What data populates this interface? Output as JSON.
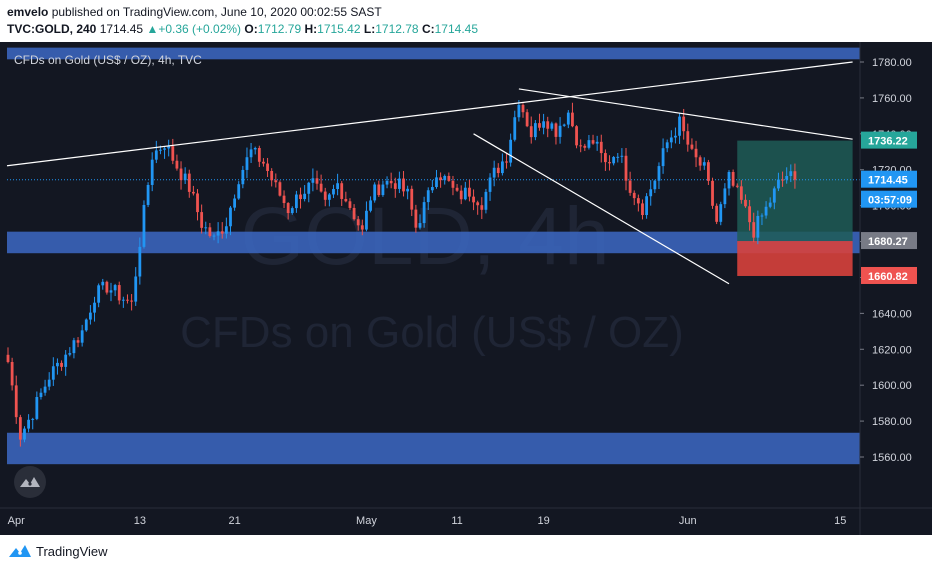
{
  "header": {
    "publisher": "emvelo",
    "published_text": "published on TradingView.com, June 10, 2020 00:02:55 SAST",
    "symbol": "TVC:GOLD, 240",
    "last": "1714.45",
    "change": "+0.36 (+0.02%)",
    "o_label": "O:",
    "o_value": "1712.79",
    "h_label": "H:",
    "h_value": "1715.42",
    "l_label": "L:",
    "l_value": "1712.78",
    "c_label": "C:",
    "c_value": "1714.45"
  },
  "chart_title": "CFDs on Gold (US$ / OZ), 4h, TVC",
  "watermark": {
    "line1": "GOLD, 4h",
    "line2": "CFDs on Gold (US$ / OZ)"
  },
  "footer": {
    "brand": "TradingView"
  },
  "colors": {
    "background": "#131722",
    "up": "#2196f3",
    "down": "#ef5350",
    "zone": "#3a63b8",
    "target": "#1e5c56",
    "stop": "#d8413c",
    "price_line": "#2196f3",
    "price_tag": "#2196f3",
    "countdown_tag": "#2196f3",
    "entry_tag": "#787b86",
    "target_tag": "#26a69a",
    "stop_tag": "#ef5350",
    "trendline": "#ffffff"
  },
  "chart_data": {
    "type": "candlestick",
    "y_axis": {
      "ylim": [
        1547,
        1790
      ],
      "ticks": [
        "1780.00",
        "1760.00",
        "1740.00",
        "1720.00",
        "1700.00",
        "1680.00",
        "1660.00",
        "1640.00",
        "1620.00",
        "1600.00",
        "1580.00",
        "1560.00"
      ]
    },
    "x_axis": {
      "ticks": [
        "Apr",
        "13",
        "21",
        "May",
        "11",
        "19",
        "Jun",
        "15"
      ],
      "tick_bars": [
        2,
        32,
        55,
        87,
        109,
        130,
        165,
        202
      ]
    },
    "close_series_anchors": [
      [
        0,
        1613
      ],
      [
        3,
        1572
      ],
      [
        6,
        1585
      ],
      [
        10,
        1605
      ],
      [
        14,
        1617
      ],
      [
        18,
        1630
      ],
      [
        21,
        1650
      ],
      [
        24,
        1655
      ],
      [
        27,
        1650
      ],
      [
        30,
        1645
      ],
      [
        32,
        1680
      ],
      [
        35,
        1728
      ],
      [
        38,
        1735
      ],
      [
        41,
        1722
      ],
      [
        44,
        1710
      ],
      [
        47,
        1690
      ],
      [
        50,
        1681
      ],
      [
        53,
        1691
      ],
      [
        56,
        1716
      ],
      [
        59,
        1730
      ],
      [
        62,
        1724
      ],
      [
        65,
        1710
      ],
      [
        68,
        1698
      ],
      [
        71,
        1707
      ],
      [
        74,
        1712
      ],
      [
        77,
        1700
      ],
      [
        80,
        1712
      ],
      [
        83,
        1700
      ],
      [
        86,
        1685
      ],
      [
        88,
        1705
      ],
      [
        91,
        1713
      ],
      [
        94,
        1713
      ],
      [
        97,
        1706
      ],
      [
        99,
        1688
      ],
      [
        102,
        1705
      ],
      [
        104,
        1720
      ],
      [
        107,
        1712
      ],
      [
        109,
        1705
      ],
      [
        112,
        1708
      ],
      [
        115,
        1702
      ],
      [
        118,
        1718
      ],
      [
        121,
        1728
      ],
      [
        124,
        1760
      ],
      [
        127,
        1740
      ],
      [
        130,
        1750
      ],
      [
        133,
        1742
      ],
      [
        136,
        1752
      ],
      [
        139,
        1731
      ],
      [
        142,
        1736
      ],
      [
        145,
        1723
      ],
      [
        148,
        1731
      ],
      [
        151,
        1711
      ],
      [
        154,
        1699
      ],
      [
        157,
        1715
      ],
      [
        160,
        1735
      ],
      [
        163,
        1746
      ],
      [
        166,
        1728
      ],
      [
        169,
        1720
      ],
      [
        172,
        1691
      ],
      [
        175,
        1715
      ],
      [
        178,
        1702
      ],
      [
        181,
        1686
      ],
      [
        184,
        1698
      ],
      [
        187,
        1712
      ],
      [
        189,
        1717
      ],
      [
        191,
        1714.45
      ]
    ],
    "bars_total": 192,
    "last_price": 1714.45,
    "price_tags": {
      "last": "1714.45",
      "countdown": "03:57:09",
      "target": "1736.22",
      "entry": "1680.27",
      "stop": "1660.82",
      "hidden_tick": "1740.00"
    },
    "zones": [
      {
        "from": 1781.5,
        "to": 1788
      },
      {
        "from": 1673.5,
        "to": 1685.5
      },
      {
        "from": 1556,
        "to": 1573.5
      }
    ],
    "position": {
      "entry": 1680.27,
      "target": 1736.22,
      "stop": 1660.82,
      "start_bar": 177,
      "end_bar": 205
    },
    "trendlines": [
      {
        "from": [
          -1,
          1722
        ],
        "to": [
          205,
          1780
        ]
      },
      {
        "from": [
          124,
          1765
        ],
        "to": [
          205,
          1737
        ]
      },
      {
        "from": [
          113,
          1740
        ],
        "to": [
          175,
          1656.5
        ]
      }
    ]
  }
}
